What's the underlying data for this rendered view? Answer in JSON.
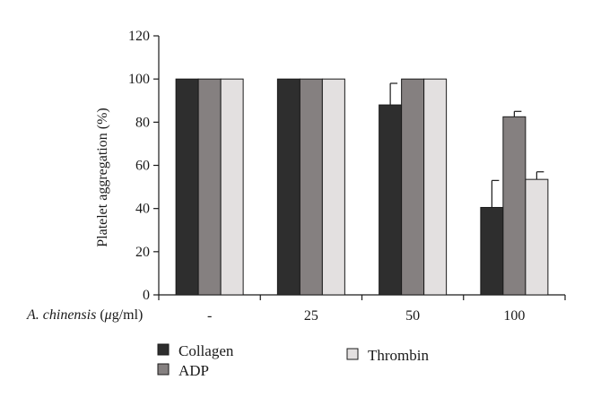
{
  "chart_data": {
    "type": "bar",
    "categories": [
      "-",
      "25",
      "50",
      "100"
    ],
    "series": [
      {
        "name": "Collagen",
        "values": [
          100,
          100,
          88,
          40.5
        ],
        "errors": [
          0,
          0,
          10,
          12.5
        ],
        "color": "#2e2e2e"
      },
      {
        "name": "ADP",
        "values": [
          100,
          100,
          100,
          82.5
        ],
        "errors": [
          0,
          0,
          0,
          2.5
        ],
        "color": "#858080"
      },
      {
        "name": "Thrombin",
        "values": [
          100,
          100,
          100,
          53.5
        ],
        "errors": [
          0,
          0,
          0,
          3.5
        ],
        "color": "#e3e0e0"
      }
    ],
    "ylabel": "Platelet aggregation (%)",
    "xlabel_italic": "A. chinensis",
    "xlabel_paren_open": " (",
    "xlabel_mu": "μ",
    "xlabel_units": "g/ml)",
    "ylim": [
      0,
      120
    ],
    "yticks": [
      0,
      20,
      40,
      60,
      80,
      100,
      120
    ],
    "grid": false,
    "legend_position": "bottom-left"
  }
}
